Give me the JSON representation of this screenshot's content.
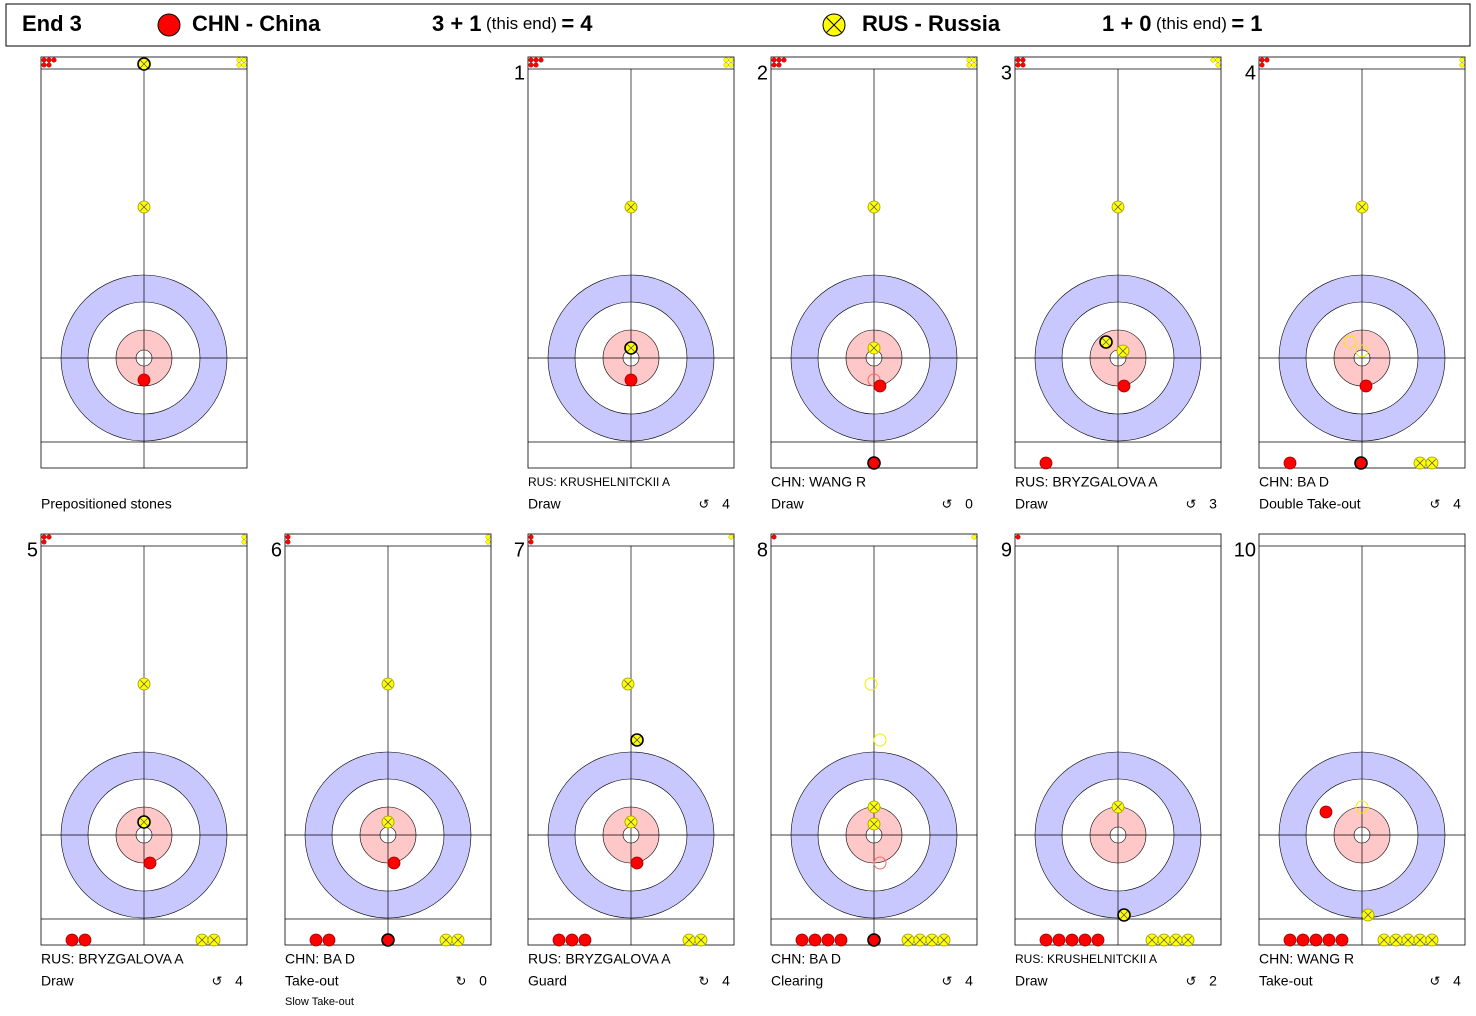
{
  "header": {
    "end": "End 3",
    "teams": [
      {
        "name": "CHN - China",
        "score": "3 + 1",
        "this_end": "(this end)",
        "total": "= 4"
      },
      {
        "name": "RUS - Russia",
        "score": "1 + 0",
        "this_end": "(this end)",
        "total": "= 1"
      }
    ]
  },
  "shots": [
    {
      "label": "Prepositioned stones"
    },
    {
      "number": "1",
      "player": "RUS: KRUSHELNITCKII A",
      "type": "Draw",
      "rotation": "↺",
      "score": 4
    },
    {
      "number": "2",
      "player": "CHN: WANG R",
      "type": "Draw",
      "rotation": "↺",
      "score": 0
    },
    {
      "number": "3",
      "player": "RUS: BRYZGALOVA A",
      "type": "Draw",
      "rotation": "↺",
      "score": 3
    },
    {
      "number": "4",
      "player": "CHN: BA D",
      "type": "Double Take-out",
      "rotation": "↺",
      "score": 4
    },
    {
      "number": "5",
      "player": "RUS: BRYZGALOVA A",
      "type": "Draw",
      "rotation": "↺",
      "score": 4
    },
    {
      "number": "6",
      "player": "CHN: BA D",
      "type": "Take-out",
      "rotation": "↻",
      "score": 0,
      "note": "Slow Take-out"
    },
    {
      "number": "7",
      "player": "RUS: BRYZGALOVA A",
      "type": "Guard",
      "rotation": "↻",
      "score": 4
    },
    {
      "number": "8",
      "player": "CHN: BA D",
      "type": "Clearing",
      "rotation": "↺",
      "score": 4
    },
    {
      "number": "9",
      "player": "RUS: KRUSHELNITCKII A",
      "type": "Draw",
      "rotation": "↺",
      "score": 2
    },
    {
      "number": "10",
      "player": "CHN: WANG R",
      "type": "Take-out",
      "rotation": "↺",
      "score": 4
    }
  ]
}
